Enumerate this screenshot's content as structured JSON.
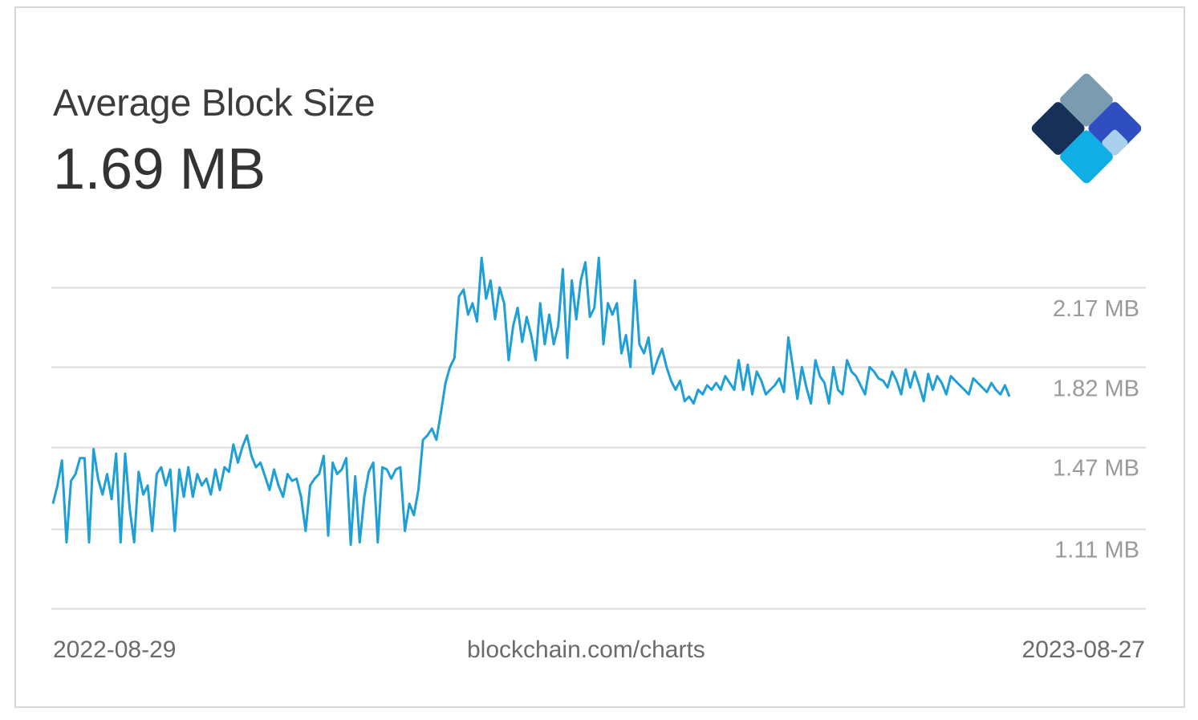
{
  "title": "Average Block Size",
  "current_value": "1.69 MB",
  "source": "blockchain.com/charts",
  "start_date": "2022-08-29",
  "end_date": "2023-08-27",
  "logo_icon": "blockchain-diamond-logo",
  "colors": {
    "line": "#1e9fd7",
    "grid": "#dcdcdc",
    "tick_text": "#9a9a9a"
  },
  "chart_data": {
    "type": "line",
    "title": "Average Block Size",
    "xlabel": "",
    "ylabel": "",
    "x_range": [
      "2022-08-29",
      "2023-08-27"
    ],
    "y_ticks": [
      {
        "value": 2.17,
        "label": "2.17 MB"
      },
      {
        "value": 1.82,
        "label": "1.82 MB"
      },
      {
        "value": 1.47,
        "label": "1.47 MB"
      },
      {
        "value": 1.11,
        "label": "1.11 MB"
      }
    ],
    "ylim": [
      0.76,
      2.48
    ],
    "grid": true,
    "legend": "none",
    "series": [
      {
        "values": [
          1.22,
          1.3,
          1.41,
          1.05,
          1.32,
          1.35,
          1.42,
          1.42,
          1.05,
          1.46,
          1.33,
          1.26,
          1.35,
          1.24,
          1.44,
          1.05,
          1.44,
          1.2,
          1.05,
          1.36,
          1.26,
          1.3,
          1.1,
          1.35,
          1.38,
          1.3,
          1.37,
          1.1,
          1.37,
          1.25,
          1.38,
          1.25,
          1.35,
          1.3,
          1.33,
          1.26,
          1.37,
          1.28,
          1.38,
          1.36,
          1.48,
          1.4,
          1.47,
          1.52,
          1.43,
          1.38,
          1.4,
          1.34,
          1.28,
          1.37,
          1.3,
          1.25,
          1.35,
          1.32,
          1.33,
          1.25,
          1.1,
          1.3,
          1.33,
          1.35,
          1.43,
          1.08,
          1.4,
          1.35,
          1.37,
          1.42,
          1.04,
          1.34,
          1.05,
          1.25,
          1.36,
          1.4,
          1.05,
          1.38,
          1.37,
          1.33,
          1.37,
          1.38,
          1.1,
          1.22,
          1.17,
          1.28,
          1.5,
          1.52,
          1.55,
          1.5,
          1.62,
          1.75,
          1.82,
          1.86,
          2.13,
          2.16,
          2.05,
          2.1,
          2.02,
          2.3,
          2.12,
          2.2,
          2.03,
          2.17,
          2.1,
          1.85,
          2.0,
          2.08,
          1.93,
          2.04,
          1.96,
          1.85,
          2.1,
          1.92,
          2.05,
          1.92,
          2.0,
          2.25,
          1.86,
          2.2,
          2.03,
          2.2,
          2.28,
          2.04,
          2.08,
          2.3,
          1.92,
          2.1,
          2.05,
          2.1,
          1.88,
          1.96,
          1.82,
          2.2,
          1.92,
          1.88,
          1.95,
          1.79,
          1.85,
          1.9,
          1.82,
          1.76,
          1.72,
          1.76,
          1.67,
          1.69,
          1.66,
          1.72,
          1.7,
          1.74,
          1.72,
          1.75,
          1.72,
          1.78,
          1.75,
          1.72,
          1.85,
          1.72,
          1.83,
          1.7,
          1.8,
          1.76,
          1.7,
          1.72,
          1.74,
          1.77,
          1.71,
          1.95,
          1.82,
          1.68,
          1.82,
          1.73,
          1.66,
          1.85,
          1.78,
          1.75,
          1.66,
          1.82,
          1.72,
          1.7,
          1.85,
          1.8,
          1.78,
          1.74,
          1.7,
          1.82,
          1.8,
          1.77,
          1.76,
          1.73,
          1.8,
          1.76,
          1.7,
          1.81,
          1.73,
          1.8,
          1.74,
          1.67,
          1.79,
          1.72,
          1.78,
          1.75,
          1.7,
          1.78,
          1.76,
          1.74,
          1.72,
          1.7,
          1.77,
          1.75,
          1.73,
          1.71,
          1.75,
          1.72,
          1.7,
          1.74,
          1.69
        ]
      }
    ]
  }
}
